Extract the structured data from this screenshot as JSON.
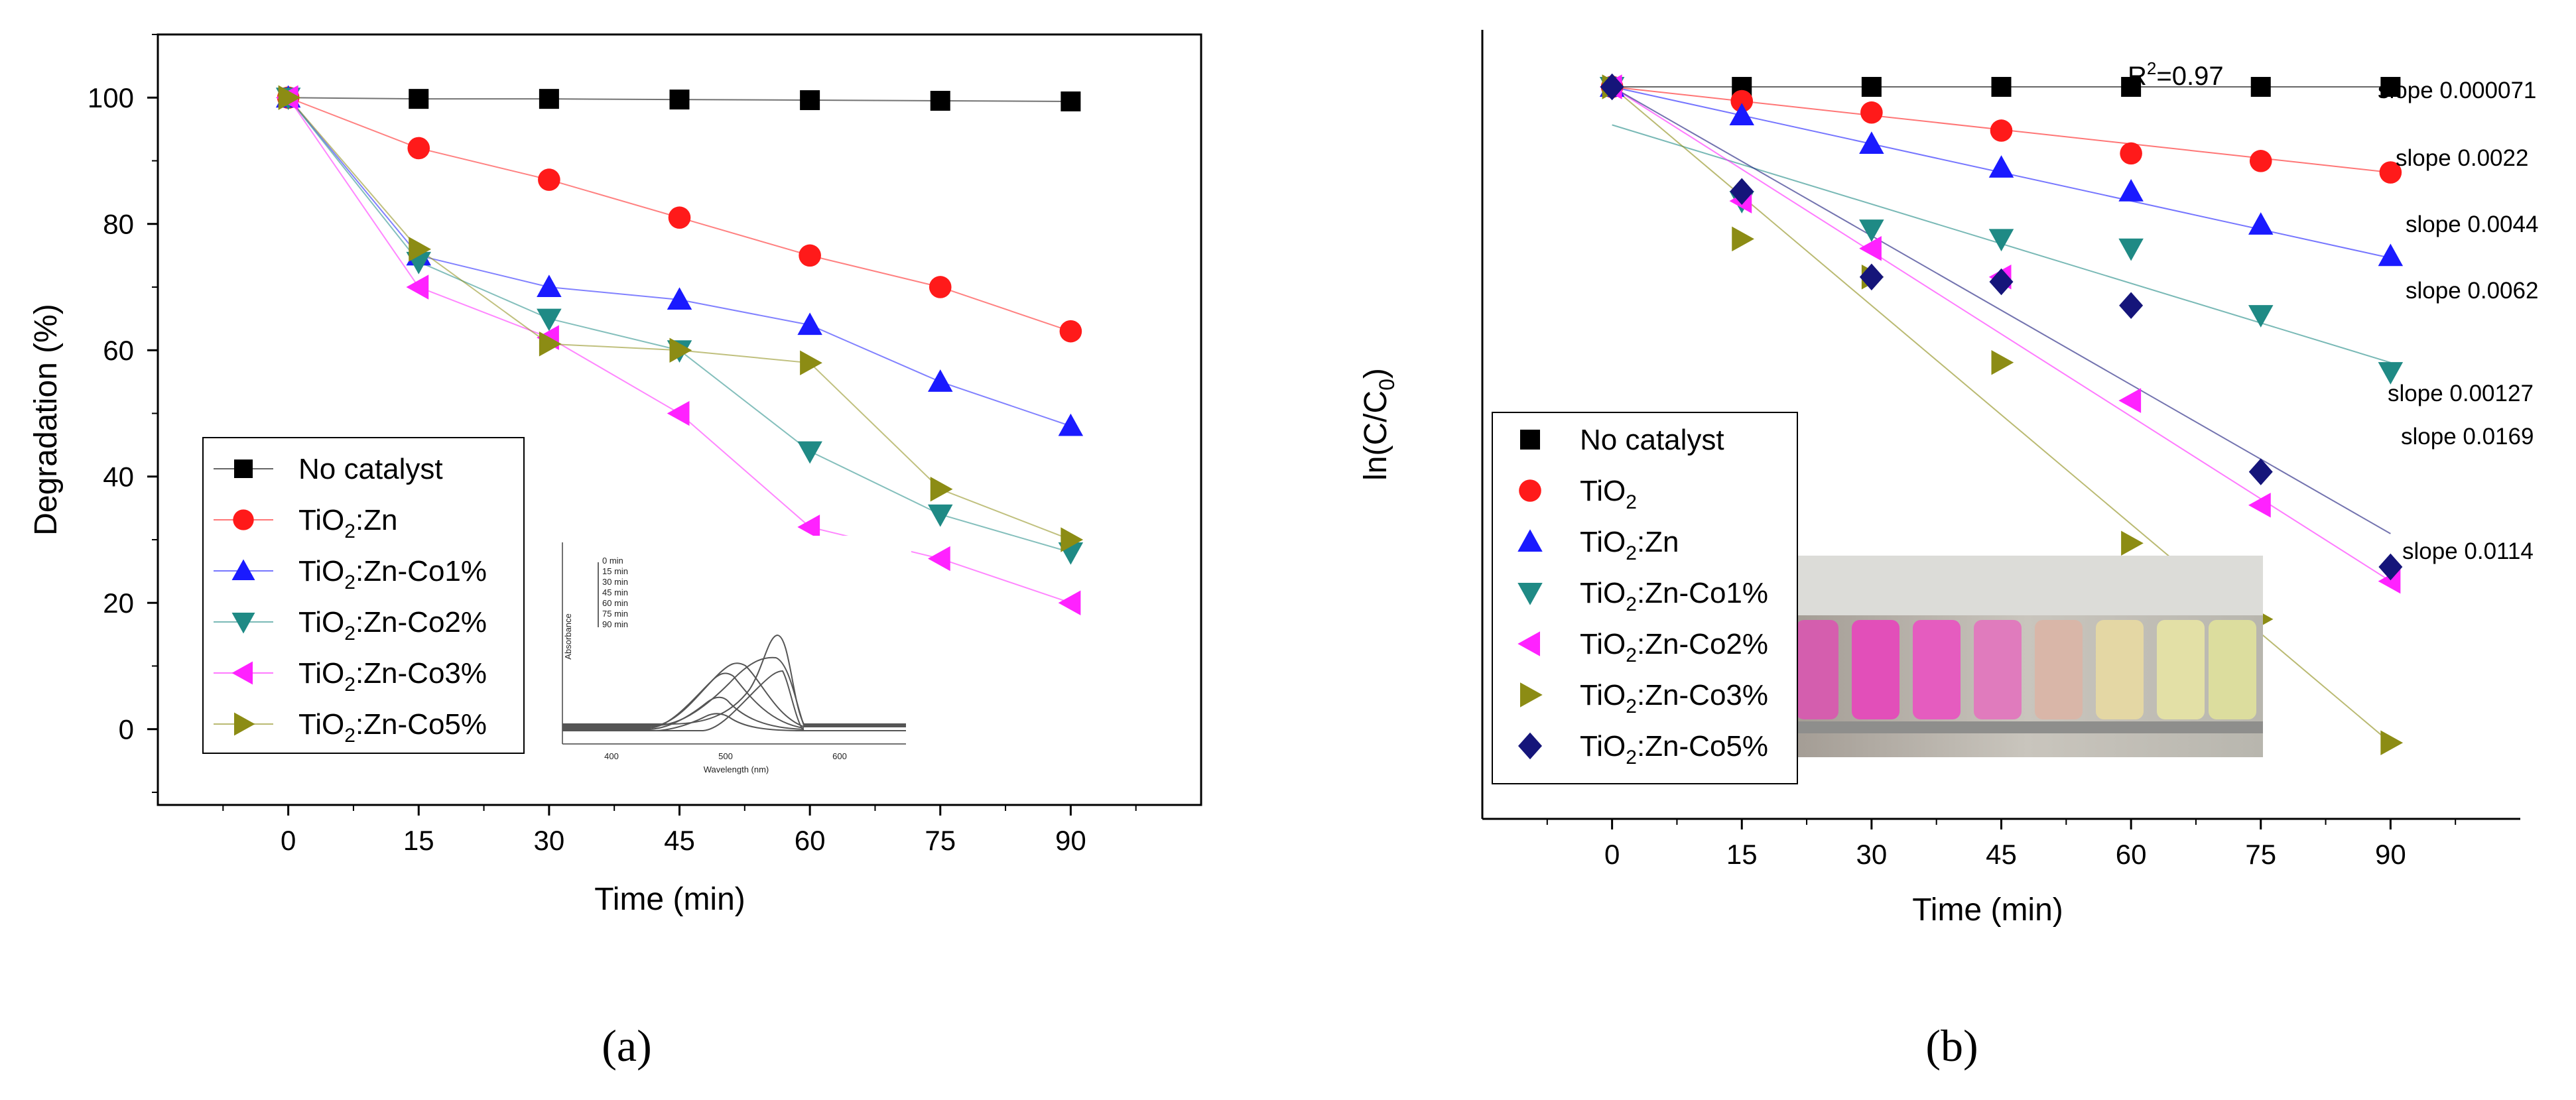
{
  "colors": {
    "no_catalyst": "#000000",
    "tio2": "#ff1a1a",
    "tio2_zn": "#1a1aff",
    "co1": "#1f8a85",
    "co2": "#ff22ff",
    "co3": "#8c8c14",
    "co5": "#15157a"
  },
  "chart_data": [
    {
      "id": "a",
      "type": "line",
      "panel_label": "(a)",
      "title": "",
      "xlabel": "Time (min)",
      "ylabel": "Degradation (%)",
      "xlim": [
        -15,
        105
      ],
      "ylim": [
        -12,
        110
      ],
      "xticks": [
        0,
        15,
        30,
        45,
        60,
        75,
        90
      ],
      "yticks": [
        0,
        20,
        40,
        60,
        80,
        100
      ],
      "legend_position": "bottom-left",
      "x": [
        0,
        15,
        30,
        45,
        60,
        75,
        90
      ],
      "series": [
        {
          "name": "No catalyst",
          "sub": "",
          "rest": "",
          "marker": "square",
          "color": "#000000",
          "values": [
            100,
            99.8,
            99.8,
            99.7,
            99.6,
            99.5,
            99.4
          ]
        },
        {
          "name": "TiO",
          "sub": "2",
          "rest": ":Zn",
          "marker": "circle",
          "color": "#ff1a1a",
          "values": [
            100,
            92,
            87,
            81,
            75,
            70,
            63
          ]
        },
        {
          "name": "TiO",
          "sub": "2",
          "rest": ":Zn-Co1%",
          "marker": "triangle-up",
          "color": "#1a1aff",
          "values": [
            100,
            75,
            70,
            68,
            64,
            55,
            48
          ]
        },
        {
          "name": "TiO",
          "sub": "2",
          "rest": ":Zn-Co2%",
          "marker": "triangle-down",
          "color": "#1f8a85",
          "values": [
            100,
            74,
            65,
            60,
            44,
            34,
            28
          ]
        },
        {
          "name": "TiO",
          "sub": "2",
          "rest": ":Zn-Co3%",
          "marker": "triangle-left",
          "color": "#ff22ff",
          "values": [
            100,
            70,
            62,
            50,
            32,
            27,
            20
          ]
        },
        {
          "name": "TiO",
          "sub": "2",
          "rest": ":Zn-Co5%",
          "marker": "triangle-right",
          "color": "#8c8c14",
          "values": [
            100,
            76,
            61,
            60,
            58,
            38,
            30
          ]
        }
      ],
      "inset": {
        "ylabel": "Absorbance",
        "xlabel": "Wavelength (nm)",
        "xticks": [
          "400",
          "500",
          "600"
        ],
        "legend": [
          "0 min",
          "15 min",
          "30 min",
          "45 min",
          "60 min",
          "75 min",
          "90 min"
        ]
      }
    },
    {
      "id": "b",
      "type": "scatter",
      "panel_label": "(b)",
      "title": "",
      "xlabel": "Time (min)",
      "ylabel_main": "ln(C/C",
      "ylabel_sub": "0",
      "ylabel_end": ")",
      "xlim": [
        -15,
        105
      ],
      "xticks": [
        0,
        15,
        30,
        45,
        60,
        75,
        90
      ],
      "yticks": [],
      "legend_position": "bottom-left",
      "annotation": {
        "main": "R",
        "sup": "2",
        "rest": "=0.97"
      },
      "x": [
        0,
        15,
        30,
        45,
        60,
        75,
        90
      ],
      "series": [
        {
          "name": "No catalyst",
          "sub": "",
          "rest": "",
          "marker": "square",
          "color": "#000000",
          "values": [
            0.99,
            0.99,
            0.99,
            0.99,
            0.99,
            0.99,
            0.99
          ],
          "fit": [
            0.99,
            0.99
          ],
          "slope": "slope 0.000071"
        },
        {
          "name": "TiO",
          "sub": "2",
          "rest": "",
          "marker": "circle",
          "color": "#ff1a1a",
          "values": [
            0.99,
            0.975,
            0.963,
            0.944,
            0.92,
            0.912,
            0.9
          ],
          "fit": [
            0.99,
            0.9
          ],
          "slope": "slope 0.0022"
        },
        {
          "name": "TiO",
          "sub": "2",
          "rest": ":Zn",
          "marker": "triangle-up",
          "color": "#1a1aff",
          "values": [
            0.99,
            0.96,
            0.93,
            0.905,
            0.88,
            0.845,
            0.812
          ],
          "fit": [
            0.99,
            0.81
          ],
          "slope": "slope 0.0044"
        },
        {
          "name": "TiO",
          "sub": "2",
          "rest": ":Zn-Co1%",
          "marker": "triangle-down",
          "color": "#1f8a85",
          "values": [
            0.99,
            0.87,
            0.84,
            0.83,
            0.82,
            0.75,
            0.69
          ],
          "fit": [
            0.95,
            0.7
          ],
          "slope": "slope 0.0062"
        },
        {
          "name": "TiO",
          "sub": "2",
          "rest": ":Zn-Co2%",
          "marker": "triangle-left",
          "color": "#ff22ff",
          "values": [
            0.99,
            0.87,
            0.82,
            0.79,
            0.66,
            0.55,
            0.47
          ],
          "fit": [
            0.99,
            0.47
          ],
          "slope": "slope 0.0169"
        },
        {
          "name": "TiO",
          "sub": "2",
          "rest": ":Zn-Co3%",
          "marker": "triangle-right",
          "color": "#8c8c14",
          "values": [
            0.99,
            0.83,
            0.79,
            0.7,
            0.51,
            0.43,
            0.3
          ],
          "fit": [
            0.99,
            0.3
          ],
          "slope": "slope 0.0114"
        },
        {
          "name": "TiO",
          "sub": "2",
          "rest": ":Zn-Co5%",
          "marker": "diamond",
          "color": "#15157a",
          "values": [
            0.99,
            0.88,
            0.79,
            0.785,
            0.76,
            0.585,
            0.485
          ],
          "fit": [
            0.99,
            0.52
          ],
          "slope": "slope 0.00127"
        }
      ],
      "photo": {
        "description_hidden": ""
      }
    }
  ]
}
